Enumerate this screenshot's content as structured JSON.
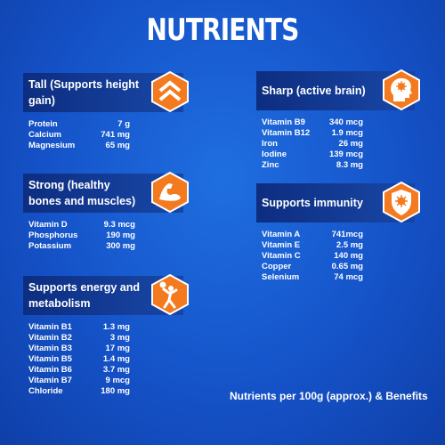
{
  "title": "NUTRIENTS",
  "sections": [
    {
      "title": "Tall (Supports height gain)",
      "icon": "chevrons-up-icon",
      "items": [
        {
          "name": "Protein",
          "value": "7 g"
        },
        {
          "name": "Calcium",
          "value": "741 mg"
        },
        {
          "name": "Magnesium",
          "value": "65 mg"
        }
      ]
    },
    {
      "title": "Strong (healthy bones and muscles)",
      "icon": "flexed-arm-icon",
      "items": [
        {
          "name": "Vitamin D",
          "value": "9.3 mcg"
        },
        {
          "name": "Phosphorus",
          "value": "190 mg"
        },
        {
          "name": "Potassium",
          "value": "300 mg"
        }
      ]
    },
    {
      "title": "Supports energy and metabolism",
      "icon": "sports-player-icon",
      "items": [
        {
          "name": "Vitamin B1",
          "value": "1.3 mg"
        },
        {
          "name": "Vitamin B2",
          "value": "3 mg"
        },
        {
          "name": "Vitamin B3",
          "value": "17 mg"
        },
        {
          "name": "Vitamin B5",
          "value": "1.4 mg"
        },
        {
          "name": "Vitamin B6",
          "value": "3.7 mg"
        },
        {
          "name": "Vitamin B7",
          "value": "9 mcg"
        },
        {
          "name": "Chloride",
          "value": "180 mg"
        }
      ]
    },
    {
      "title": "Sharp (active brain)",
      "icon": "brain-head-icon",
      "items": [
        {
          "name": "Vitamin B9",
          "value": "340 mcg"
        },
        {
          "name": "Vitamin B12",
          "value": "1.9 mcg"
        },
        {
          "name": "Iron",
          "value": "26 mg"
        },
        {
          "name": "Iodine",
          "value": "139 mcg"
        },
        {
          "name": "Zinc",
          "value": "8.3 mg"
        }
      ]
    },
    {
      "title": "Supports immunity",
      "icon": "shield-virus-icon",
      "items": [
        {
          "name": "Vitamin A",
          "value": "741mcg"
        },
        {
          "name": "Vitamin E",
          "value": "2.5 mg"
        },
        {
          "name": "Vitamin C",
          "value": "140 mg"
        },
        {
          "name": "Copper",
          "value": "0.65 mg"
        },
        {
          "name": "Selenium",
          "value": "74 mcg"
        }
      ]
    }
  ],
  "footer": "Nutrients per 100g (approx.) & Benefits",
  "colors": {
    "background": "#1553c9",
    "banner": "#0d2d80",
    "accent": "#f47a20"
  }
}
